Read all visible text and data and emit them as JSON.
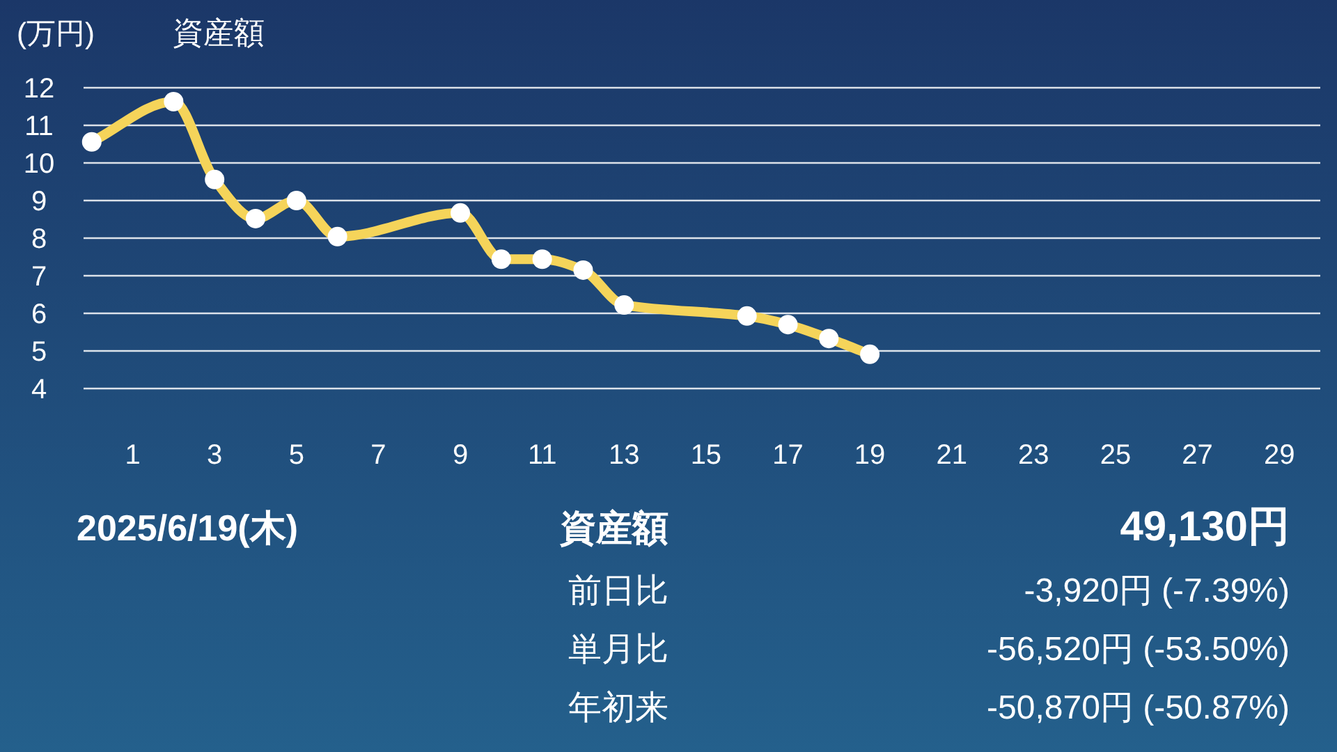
{
  "chart_data": [
    {
      "type": "line",
      "title": "資産額",
      "ylabel": "(万円)",
      "x": [
        0,
        2,
        3,
        4,
        5,
        6,
        9,
        10,
        11,
        12,
        13,
        16,
        17,
        18,
        19
      ],
      "series": [
        {
          "color": "#f5d45a",
          "values": [
            10.56,
            11.63,
            9.56,
            8.52,
            9.0,
            8.04,
            8.67,
            7.44,
            7.44,
            7.15,
            6.22,
            5.93,
            5.7,
            5.33,
            4.91
          ]
        }
      ],
      "xlim": [
        -0.2,
        30
      ],
      "xticks": [
        1,
        3,
        5,
        7,
        9,
        11,
        13,
        15,
        17,
        19,
        21,
        23,
        25,
        27,
        29
      ],
      "ylim": [
        4,
        12
      ],
      "yticks": [
        4,
        5,
        6,
        7,
        8,
        9,
        10,
        11,
        12
      ],
      "grid": "y",
      "marker": "circle",
      "line_style": "solid"
    },
    {
      "type": "other",
      "annotations": [
        "2025/6/19(木)",
        "資産額",
        "49,130円",
        "前日比",
        "-3,920円 (-7.39%)",
        "単月比",
        "-56,520円 (-53.50%)",
        "年初来",
        "-50,870円 (-50.87%)"
      ]
    }
  ]
}
